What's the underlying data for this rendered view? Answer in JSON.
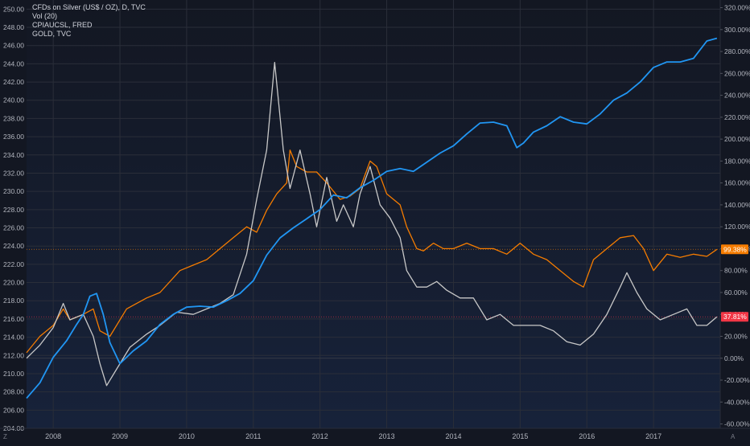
{
  "chart_data": {
    "type": "line",
    "legend": [
      "CFDs on Silver (US$ / OZ), D, TVC",
      "Vol (20)",
      "CPIAUCSL, FRED",
      "GOLD, TVC"
    ],
    "left_axis": {
      "ticks": [
        204,
        206,
        208,
        210,
        212,
        214,
        216,
        218,
        220,
        222,
        224,
        226,
        228,
        230,
        232,
        234,
        236,
        238,
        240,
        242,
        244,
        246,
        248,
        250
      ],
      "tick_labels": [
        "204.00",
        "206.00",
        "208.00",
        "210.00",
        "212.00",
        "214.00",
        "216.00",
        "218.00",
        "220.00",
        "222.00",
        "224.00",
        "226.00",
        "228.00",
        "230.00",
        "232.00",
        "234.00",
        "236.00",
        "238.00",
        "240.00",
        "242.00",
        "244.00",
        "246.00",
        "248.00",
        "250.00"
      ],
      "ylim": [
        204,
        251
      ]
    },
    "right_axis": {
      "ticks": [
        -60,
        -40,
        -20,
        0,
        20,
        40,
        60,
        80,
        100,
        120,
        140,
        160,
        180,
        200,
        220,
        240,
        260,
        280,
        300,
        320
      ],
      "tick_labels": [
        "-60.00%",
        "-40.00%",
        "-20.00%",
        "0.00%",
        "20.00%",
        "40.00%",
        "60.00%",
        "80.00%",
        "100.00%",
        "120.00%",
        "140.00%",
        "160.00%",
        "180.00%",
        "200.00%",
        "220.00%",
        "240.00%",
        "260.00%",
        "280.00%",
        "300.00%",
        "320.00%"
      ],
      "ylim": [
        -64,
        327
      ]
    },
    "x_axis": {
      "tick_labels": [
        "2008",
        "2009",
        "2010",
        "2011",
        "2012",
        "2013",
        "2014",
        "2015",
        "2016",
        "2017"
      ],
      "tick_positions": [
        2008,
        2009,
        2010,
        2011,
        2012,
        2013,
        2014,
        2015,
        2016,
        2017
      ],
      "xlim": [
        2007.6,
        2018.0
      ],
      "left_corner": "Z",
      "right_corner": "A"
    },
    "series": [
      {
        "name": "CFDs on Silver (US$ / OZ), D, TVC",
        "axis": "right",
        "color": "#c8c8c8",
        "x": [
          2007.6,
          2007.8,
          2008.0,
          2008.15,
          2008.25,
          2008.45,
          2008.6,
          2008.7,
          2008.8,
          2008.95,
          2009.15,
          2009.4,
          2009.6,
          2009.85,
          2010.1,
          2010.3,
          2010.5,
          2010.7,
          2010.9,
          2011.05,
          2011.2,
          2011.32,
          2011.45,
          2011.55,
          2011.7,
          2011.85,
          2011.95,
          2012.1,
          2012.25,
          2012.35,
          2012.5,
          2012.6,
          2012.75,
          2012.9,
          2013.05,
          2013.2,
          2013.3,
          2013.45,
          2013.6,
          2013.75,
          2013.9,
          2014.1,
          2014.3,
          2014.5,
          2014.7,
          2014.9,
          2015.1,
          2015.3,
          2015.5,
          2015.7,
          2015.9,
          2016.1,
          2016.3,
          2016.5,
          2016.6,
          2016.75,
          2016.9,
          2017.1,
          2017.3,
          2017.5,
          2017.65,
          2017.8,
          2017.95
        ],
        "y": [
          0,
          12,
          28,
          50,
          35,
          40,
          20,
          -5,
          -25,
          -10,
          10,
          22,
          30,
          42,
          40,
          45,
          50,
          58,
          95,
          145,
          190,
          270,
          190,
          155,
          190,
          150,
          120,
          165,
          125,
          140,
          120,
          150,
          175,
          140,
          128,
          110,
          80,
          65,
          65,
          70,
          62,
          55,
          55,
          35,
          40,
          30,
          30,
          30,
          25,
          15,
          12,
          22,
          40,
          65,
          78,
          60,
          45,
          35,
          40,
          45,
          30,
          30,
          37.81
        ]
      },
      {
        "name": "CPIAUCSL, FRED",
        "axis": "left",
        "color": "#2196f3",
        "x": [
          2007.6,
          2007.8,
          2008.0,
          2008.2,
          2008.35,
          2008.45,
          2008.55,
          2008.65,
          2008.75,
          2008.85,
          2009.0,
          2009.2,
          2009.4,
          2009.6,
          2009.8,
          2010.0,
          2010.2,
          2010.4,
          2010.6,
          2010.8,
          2011.0,
          2011.2,
          2011.4,
          2011.6,
          2011.8,
          2012.0,
          2012.2,
          2012.4,
          2012.6,
          2012.8,
          2013.0,
          2013.2,
          2013.4,
          2013.6,
          2013.8,
          2014.0,
          2014.2,
          2014.4,
          2014.6,
          2014.8,
          2014.95,
          2015.05,
          2015.2,
          2015.4,
          2015.6,
          2015.8,
          2016.0,
          2016.2,
          2016.4,
          2016.6,
          2016.8,
          2017.0,
          2017.2,
          2017.4,
          2017.6,
          2017.8,
          2017.95
        ],
        "y": [
          207.3,
          209.0,
          211.8,
          213.6,
          215.4,
          216.5,
          218.5,
          218.8,
          216.5,
          213.4,
          211.1,
          212.5,
          213.6,
          215.4,
          216.5,
          217.3,
          217.4,
          217.3,
          218.0,
          218.8,
          220.2,
          223.0,
          224.9,
          226.0,
          227.0,
          228.0,
          229.6,
          229.3,
          230.4,
          231.2,
          232.2,
          232.5,
          232.2,
          233.2,
          234.2,
          235.0,
          236.3,
          237.5,
          237.6,
          237.2,
          234.8,
          235.3,
          236.5,
          237.2,
          238.2,
          237.6,
          237.4,
          238.5,
          240.0,
          240.8,
          242.0,
          243.6,
          244.2,
          244.2,
          244.6,
          246.5,
          246.8
        ]
      },
      {
        "name": "GOLD, TVC",
        "axis": "right",
        "color": "#f57c00",
        "x": [
          2007.6,
          2007.8,
          2008.0,
          2008.15,
          2008.25,
          2008.45,
          2008.6,
          2008.7,
          2008.85,
          2009.1,
          2009.4,
          2009.6,
          2009.9,
          2010.1,
          2010.3,
          2010.5,
          2010.7,
          2010.9,
          2011.05,
          2011.2,
          2011.35,
          2011.5,
          2011.55,
          2011.65,
          2011.8,
          2011.95,
          2012.1,
          2012.3,
          2012.45,
          2012.6,
          2012.75,
          2012.85,
          2013.0,
          2013.2,
          2013.3,
          2013.45,
          2013.55,
          2013.7,
          2013.85,
          2014.0,
          2014.2,
          2014.4,
          2014.6,
          2014.8,
          2015.0,
          2015.2,
          2015.4,
          2015.6,
          2015.8,
          2015.95,
          2016.1,
          2016.3,
          2016.5,
          2016.7,
          2016.85,
          2017.0,
          2017.2,
          2017.4,
          2017.6,
          2017.8,
          2017.95
        ],
        "y": [
          5,
          20,
          30,
          45,
          35,
          40,
          45,
          25,
          20,
          45,
          55,
          60,
          80,
          85,
          90,
          100,
          110,
          120,
          115,
          135,
          150,
          160,
          190,
          175,
          170,
          170,
          160,
          145,
          148,
          155,
          180,
          175,
          150,
          140,
          120,
          100,
          98,
          105,
          100,
          100,
          105,
          100,
          100,
          95,
          105,
          95,
          90,
          80,
          70,
          65,
          90,
          100,
          110,
          112,
          100,
          80,
          95,
          92,
          95,
          93,
          99.38
        ]
      }
    ],
    "last_value_labels": [
      {
        "series": "GOLD, TVC",
        "value": 99.38,
        "text": "99.38%",
        "color": "#f57c00"
      },
      {
        "series": "CFDs on Silver (US$ / OZ), D, TVC",
        "value": 37.81,
        "text": "37.81%",
        "color": "#f23645"
      }
    ],
    "grid": true
  }
}
